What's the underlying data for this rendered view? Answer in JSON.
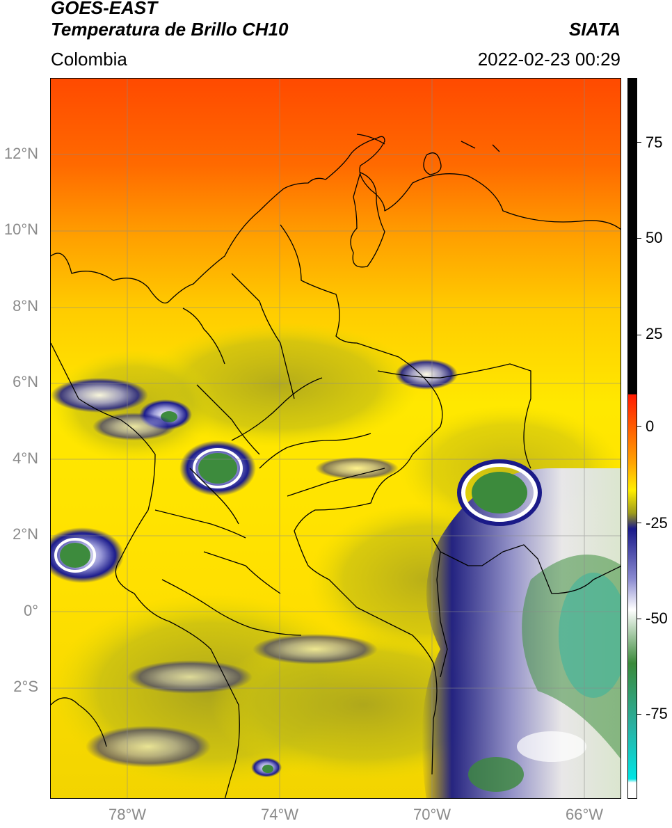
{
  "header": {
    "satellite": "GOES-EAST",
    "product": "Temperatura de Brillo CH10",
    "source": "SIATA",
    "region": "Colombia",
    "datetime": "2022-02-23 00:29"
  },
  "map": {
    "lat_ticks": [
      "12°N",
      "10°N",
      "8°N",
      "6°N",
      "4°N",
      "2°N",
      "0°",
      "2°S"
    ],
    "lon_ticks": [
      "78°W",
      "74°W",
      "70°W",
      "66°W"
    ],
    "lat_range": [
      -4.95,
      13.9
    ],
    "lon_range": [
      -80.0,
      -65.0
    ],
    "gridlines": true
  },
  "colorbar": {
    "ticks": [
      "75",
      "50",
      "25",
      "0",
      "-25",
      "-50",
      "-75"
    ],
    "range": [
      -97,
      90
    ],
    "stops": [
      {
        "value": 90,
        "color": "#000000"
      },
      {
        "value": 8,
        "color": "#000000"
      },
      {
        "value": 7.9,
        "color": "#ff1a00"
      },
      {
        "value": -10,
        "color": "#ffa500"
      },
      {
        "value": -17,
        "color": "#ffee00"
      },
      {
        "value": -23,
        "color": "#9c9a1c"
      },
      {
        "value": -27,
        "color": "#1a1a8a"
      },
      {
        "value": -40,
        "color": "#8a8ad0"
      },
      {
        "value": -48,
        "color": "#ffffff"
      },
      {
        "value": -62,
        "color": "#3a8a3a"
      },
      {
        "value": -78,
        "color": "#2ab0a0"
      },
      {
        "value": -92,
        "color": "#00e5e5"
      },
      {
        "value": -93,
        "color": "#ffffff"
      },
      {
        "value": -97,
        "color": "#ffffff"
      }
    ]
  }
}
